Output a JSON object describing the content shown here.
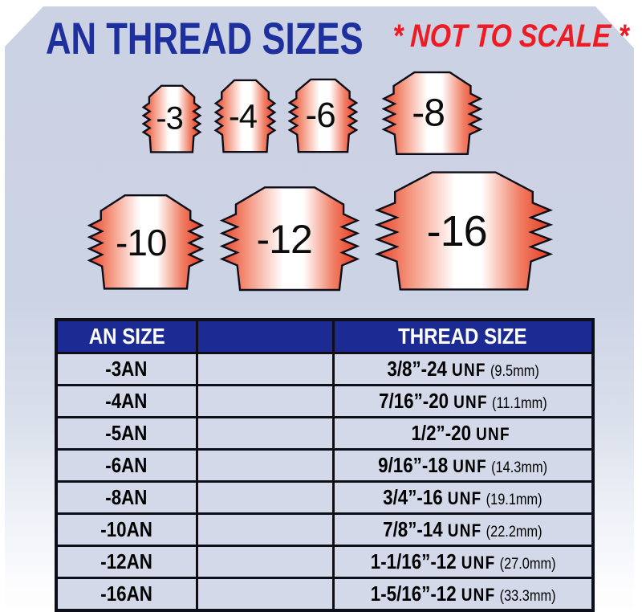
{
  "title": "AN THREAD SIZES",
  "subtitle": "* NOT TO SCALE *",
  "colors": {
    "panel": "#ccd3e5",
    "title_blue": "#1e2f9e",
    "accent_red": "#ed1c24",
    "header_blue": "#1c2b94",
    "row_bg": "#d3d9e9",
    "fitting_edge_red": "#e6432a",
    "fitting_center": "#ffffff",
    "outline_black": "#0e0e18"
  },
  "fittings": [
    {
      "label": "-3"
    },
    {
      "label": "-4"
    },
    {
      "label": "-6"
    },
    {
      "label": "-8"
    },
    {
      "label": "-10"
    },
    {
      "label": "-12"
    },
    {
      "label": "-16"
    }
  ],
  "table": {
    "headers": [
      "AN SIZE",
      "",
      "THREAD SIZE"
    ],
    "rows": [
      {
        "an_size": "-3AN",
        "thread": "3/8”-24",
        "standard": "UNF",
        "metric": "(9.5mm)"
      },
      {
        "an_size": "-4AN",
        "thread": "7/16”-20",
        "standard": "UNF",
        "metric": "(11.1mm)"
      },
      {
        "an_size": "-5AN",
        "thread": "1/2”-20",
        "standard": "UNF",
        "metric": ""
      },
      {
        "an_size": "-6AN",
        "thread": "9/16”-18",
        "standard": "UNF",
        "metric": "(14.3mm)"
      },
      {
        "an_size": "-8AN",
        "thread": "3/4”-16",
        "standard": "UNF",
        "metric": "(19.1mm)"
      },
      {
        "an_size": "-10AN",
        "thread": "7/8”-14",
        "standard": "UNF",
        "metric": "(22.2mm)"
      },
      {
        "an_size": "-12AN",
        "thread": "1-1/16”-12",
        "standard": "UNF",
        "metric": "(27.0mm)"
      },
      {
        "an_size": "-16AN",
        "thread": "1-5/16”-12",
        "standard": "UNF",
        "metric": "(33.3mm)"
      }
    ]
  }
}
